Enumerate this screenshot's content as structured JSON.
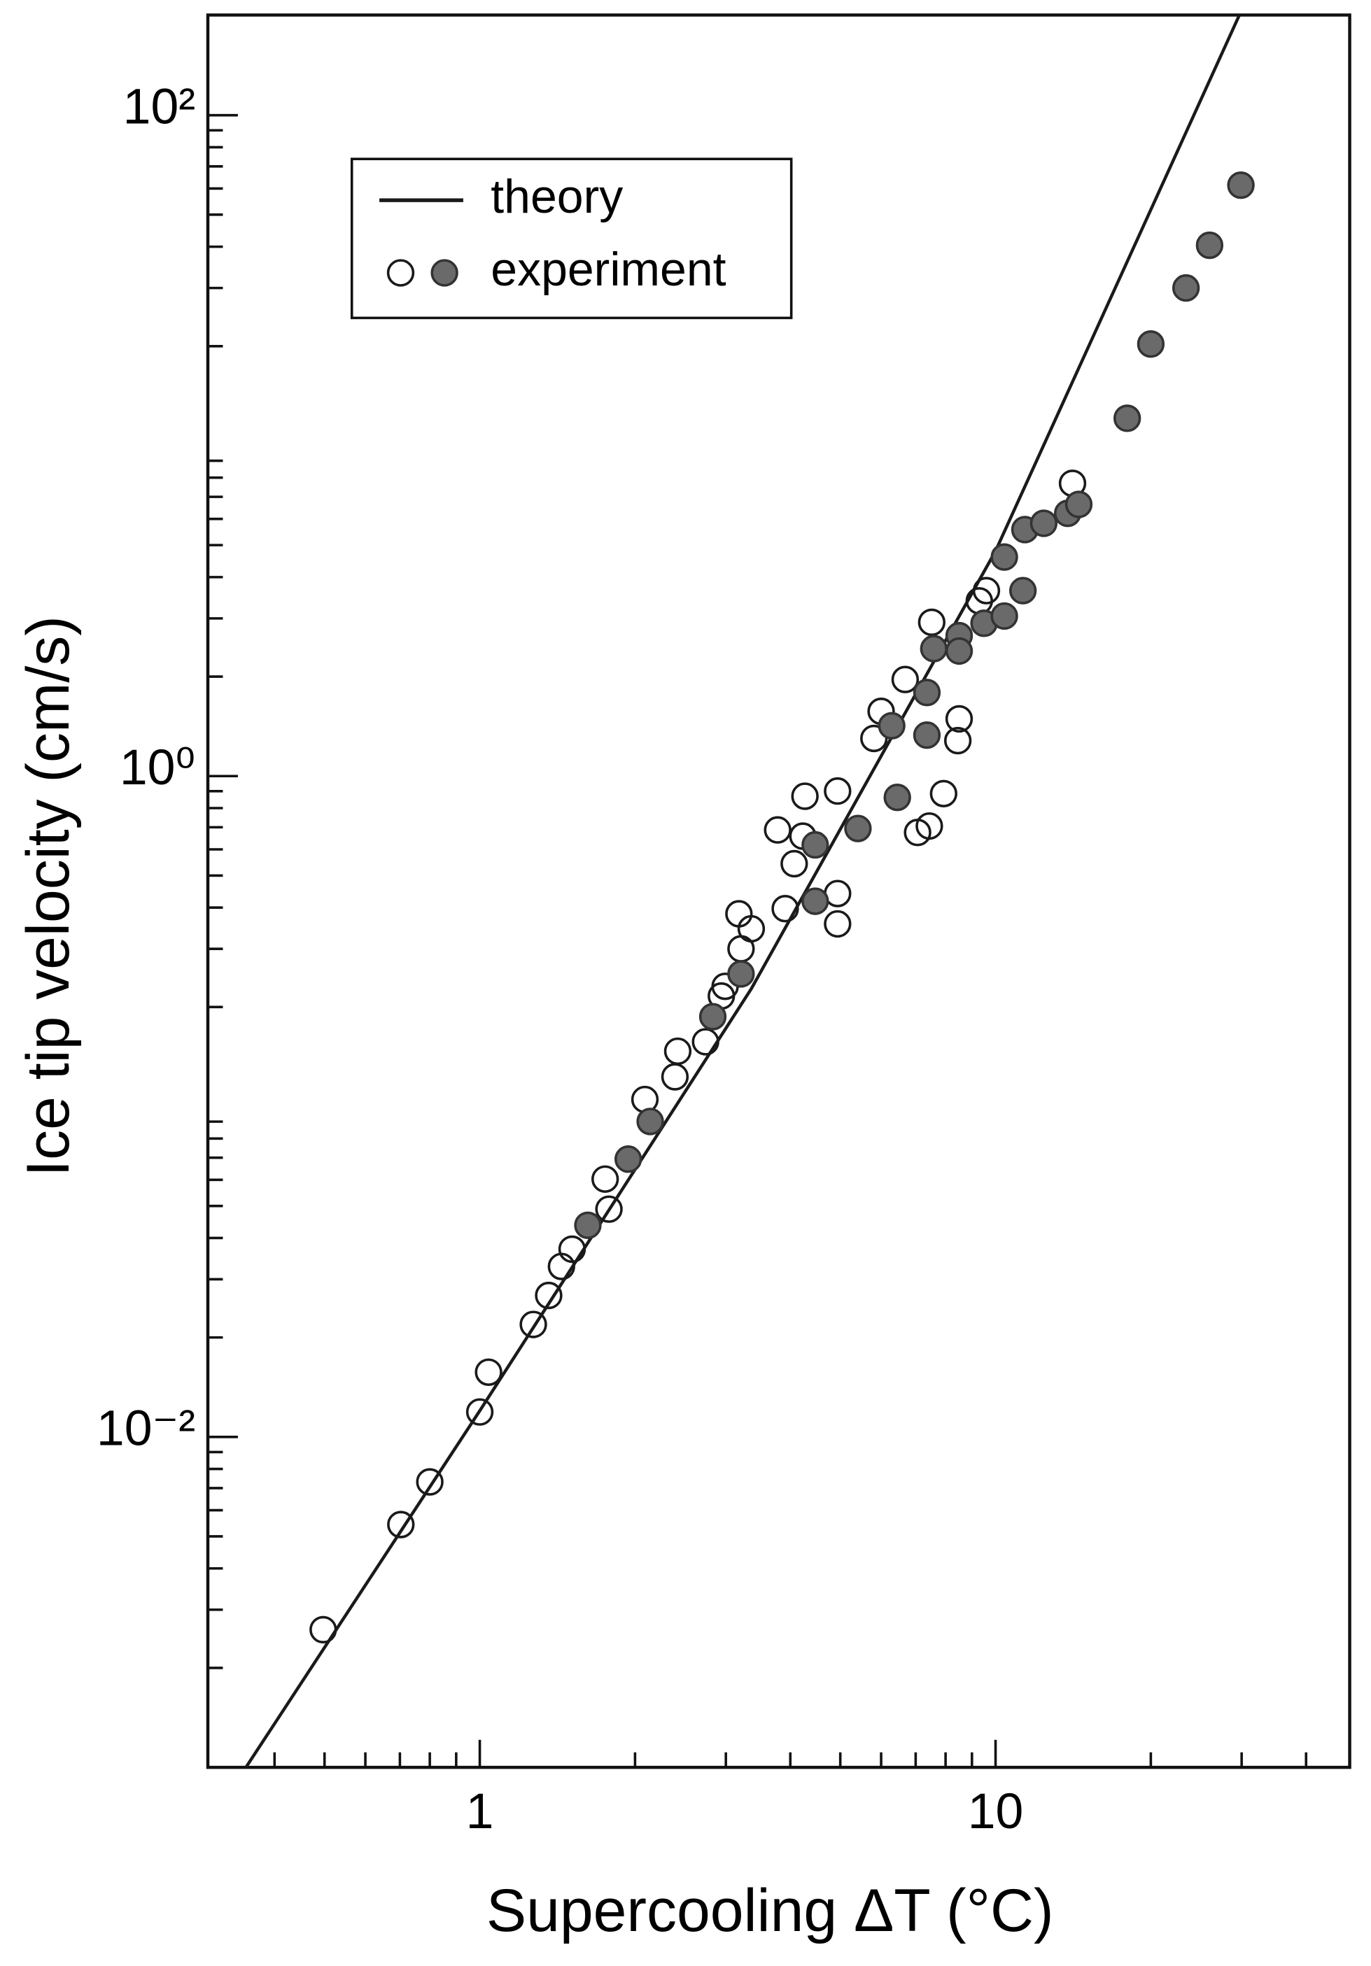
{
  "chart_data": {
    "type": "scatter",
    "xlabel": "Supercooling ΔT (°C)",
    "ylabel": "Ice tip velocity (cm/s)",
    "xscale": "log",
    "yscale": "log",
    "xlim": [
      0.297,
      48.6
    ],
    "ylim": [
      0.001,
      201
    ],
    "xticks": [
      1,
      10
    ],
    "xminor": [
      0.4,
      0.5,
      0.6,
      0.7,
      0.8,
      0.9,
      2,
      3,
      4,
      5,
      6,
      7,
      8,
      9,
      20,
      30,
      40
    ],
    "yticks": [
      {
        "value": 0.01,
        "label": "10⁻²"
      },
      {
        "value": 1,
        "label": "10⁰"
      },
      {
        "value": 100,
        "label": "10²"
      }
    ],
    "yminor": [
      0.002,
      0.003,
      0.004,
      0.005,
      0.006,
      0.007,
      0.008,
      0.009,
      0.02,
      0.03,
      0.04,
      0.05,
      0.06,
      0.07,
      0.08,
      0.09,
      0.2,
      0.3,
      0.4,
      0.5,
      0.6,
      0.7,
      0.8,
      0.9,
      2,
      3,
      4,
      5,
      6,
      7,
      8,
      9,
      20,
      30,
      40,
      50,
      60,
      70,
      80,
      90
    ],
    "legend": "top-left",
    "series": [
      {
        "name": "theory",
        "style": "line",
        "color": "#1a1a1a",
        "x": [
          0.352,
          1,
          3.36,
          10,
          29.7
        ],
        "values": [
          0.001,
          0.012,
          0.227,
          4.8,
          201
        ]
      },
      {
        "name": "experiment",
        "style": "markers",
        "groups": [
          {
            "marker": "open",
            "color": "#1a1a1a",
            "x": [
              0.497,
              0.703,
              0.8,
              1.0,
              1.04,
              1.27,
              1.36,
              1.44,
              1.51,
              1.78,
              1.75,
              2.09,
              2.39,
              2.42,
              2.74,
              2.94,
              2.99,
              3.21,
              3.18,
              3.36,
              3.91,
              3.78,
              4.07,
              4.23,
              4.27,
              4.94,
              4.94,
              4.94,
              5.81,
              6.0,
              6.68,
              7.52,
              7.06,
              7.44,
              7.93,
              8.5,
              8.45,
              9.3,
              9.6,
              14.1
            ],
            "values": [
              0.00261,
              0.00543,
              0.00731,
              0.0119,
              0.0157,
              0.0219,
              0.0268,
              0.0328,
              0.037,
              0.0489,
              0.0603,
              0.105,
              0.123,
              0.147,
              0.157,
              0.216,
              0.231,
              0.3,
              0.383,
              0.345,
              0.397,
              0.687,
              0.543,
              0.658,
              0.869,
              0.901,
              0.441,
              0.357,
              1.3,
              1.57,
              1.96,
              2.92,
              0.675,
              0.706,
              0.885,
              1.49,
              1.28,
              3.39,
              3.64,
              7.69
            ]
          },
          {
            "marker": "filled",
            "color": "#6a6a6a",
            "x": [
              1.62,
              1.94,
              2.14,
              2.83,
              3.21,
              4.47,
              4.47,
              5.41,
              6.29,
              6.45,
              7.36,
              7.36,
              7.59,
              8.5,
              8.5,
              9.5,
              10.4,
              10.4,
              11.3,
              11.4,
              12.4,
              13.8,
              14.5,
              18.0,
              20.0,
              23.4,
              26.0,
              29.9
            ],
            "values": [
              0.0437,
              0.0693,
              0.0901,
              0.187,
              0.252,
              0.619,
              0.418,
              0.694,
              1.42,
              0.862,
              1.79,
              1.33,
              2.43,
              2.66,
              2.39,
              2.9,
              4.6,
              3.05,
              3.64,
              5.57,
              5.82,
              6.24,
              6.64,
              12.1,
              20.3,
              30.0,
              40.4,
              61.4
            ]
          }
        ]
      }
    ]
  }
}
